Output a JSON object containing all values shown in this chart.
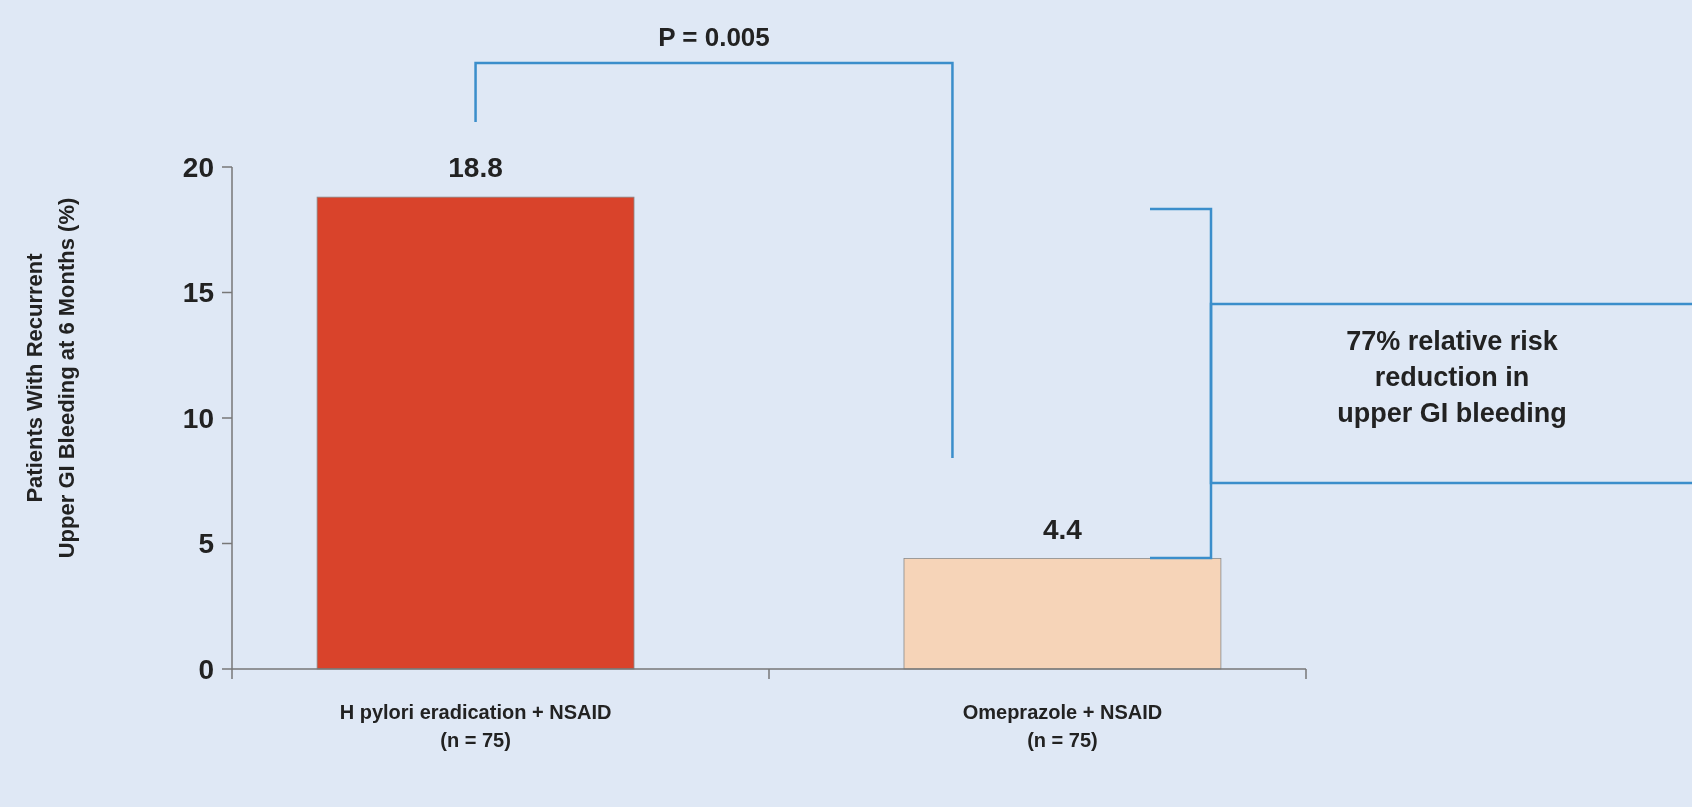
{
  "chart_data": {
    "type": "bar",
    "ylabel": "Patients With Recurrent\nUpper GI Bleeding at 6 Months (%)",
    "categories": [
      "H pylori eradication + NSAID\n(n = 75)",
      "Omeprazole + NSAID\n(n = 75)"
    ],
    "values": [
      18.8,
      4.4
    ],
    "colors": [
      "#d9432b",
      "#f6d4b8"
    ],
    "ylim": [
      0,
      20
    ],
    "yticks": [
      0,
      5,
      10,
      15,
      20
    ],
    "grid": false,
    "data_labels": true,
    "annotations": [
      "P = 0.005",
      "77% relative risk\nreduction in\nupper GI bleeding"
    ]
  }
}
